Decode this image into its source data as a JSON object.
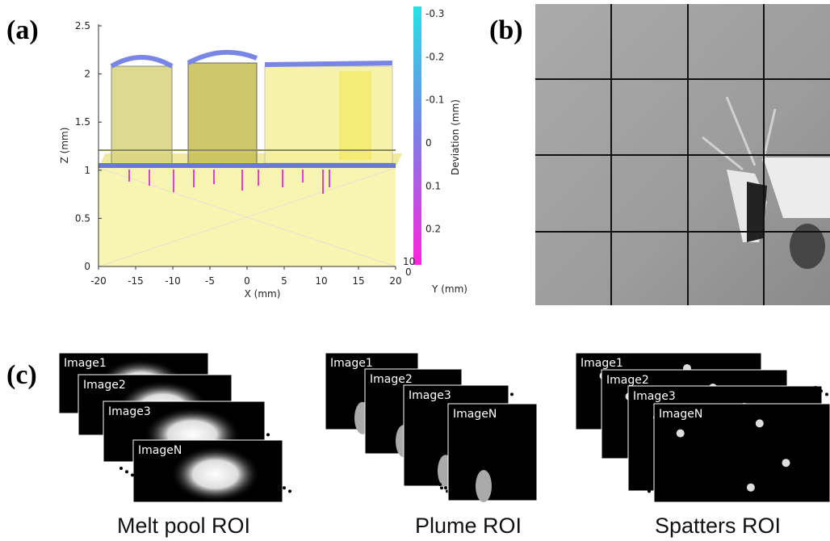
{
  "panel_a": {
    "label": "(a)",
    "z_axis_title": "Z (mm)",
    "z_ticks": [
      0,
      0.5,
      1,
      1.5,
      2,
      2.5
    ],
    "x_axis_title": "X (mm)",
    "x_ticks": [
      -20,
      -15,
      -10,
      -5,
      0,
      5,
      10,
      15,
      20
    ],
    "y_axis_title": "Y (mm)",
    "y_ticks": [
      0,
      10
    ],
    "colorbar_title": "Deviation (mm)",
    "colorbar_ticks": [
      -0.3,
      -0.2,
      -0.1,
      0,
      0.1,
      0.2
    ]
  },
  "panel_b": {
    "label": "(b)"
  },
  "panel_c": {
    "label": "(c)",
    "groups": [
      {
        "caption": "Melt pool ROI",
        "images": [
          "Image1",
          "Image2",
          "Image3",
          "ImageN"
        ]
      },
      {
        "caption": "Plume ROI",
        "images": [
          "Image1",
          "Image2",
          "Image3",
          "ImageN"
        ]
      },
      {
        "caption": "Spatters ROI",
        "images": [
          "Image1",
          "Image2",
          "Image3",
          "ImageN"
        ]
      }
    ]
  }
}
